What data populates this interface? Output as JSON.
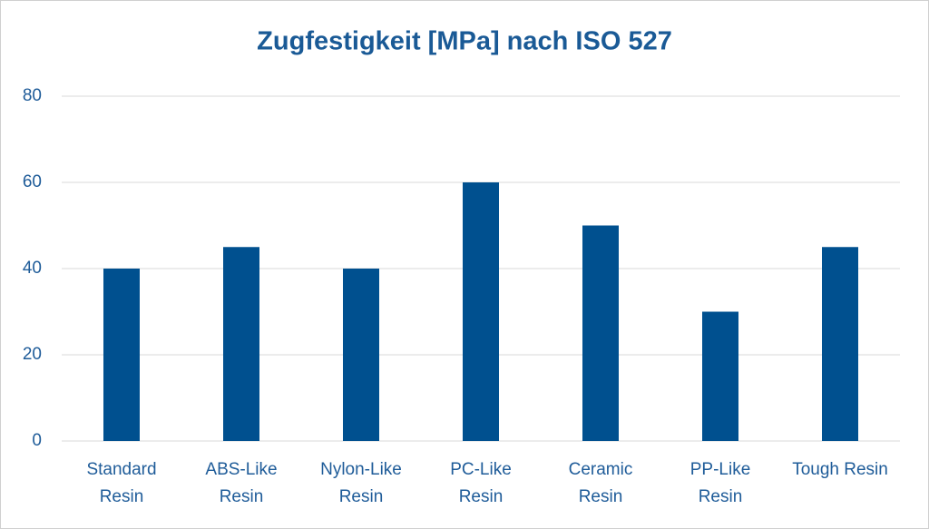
{
  "chart_data": {
    "type": "bar",
    "title": "Zugfestigkeit [MPa] nach ISO 527",
    "categories": [
      "Standard Resin",
      "ABS-Like Resin",
      "Nylon-Like Resin",
      "PC-Like Resin",
      "Ceramic Resin",
      "PP-Like Resin",
      "Tough Resin"
    ],
    "values": [
      40,
      45,
      40,
      60,
      50,
      30,
      45
    ],
    "color": "#00508f",
    "ylim": [
      0,
      80
    ],
    "yticks": [
      0,
      20,
      40,
      60,
      80
    ],
    "grid": true
  }
}
